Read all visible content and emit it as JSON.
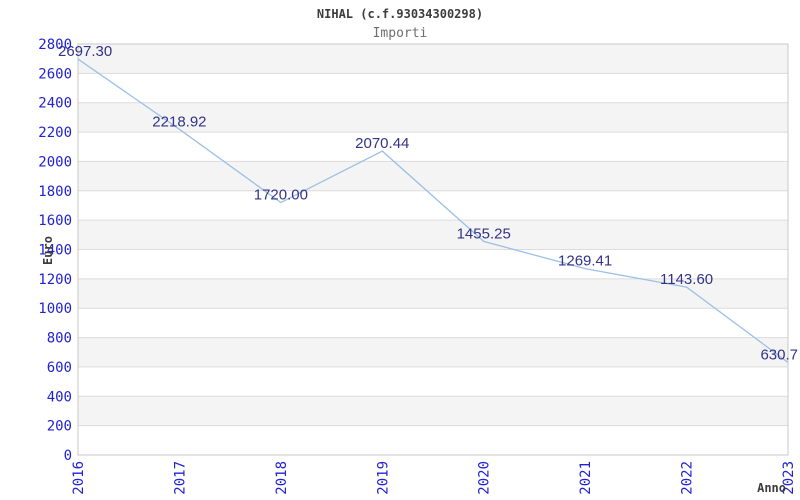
{
  "header": {
    "title": "NIHAL (c.f.93034300298)",
    "subtitle": "Importi"
  },
  "chart_data": {
    "type": "line",
    "title": "NIHAL (c.f.93034300298)",
    "subtitle": "Importi",
    "xlabel": "Anno",
    "ylabel": "Euro",
    "categories": [
      "2016",
      "2017",
      "2018",
      "2019",
      "2020",
      "2021",
      "2022",
      "2023"
    ],
    "values": [
      2697.3,
      2218.92,
      1720.0,
      2070.44,
      1455.25,
      1269.41,
      1143.6,
      630.7
    ],
    "point_labels": [
      "2697.30",
      "2218.92",
      "1720.00",
      "2070.44",
      "1455.25",
      "1269.41",
      "1143.60",
      "630.7"
    ],
    "ylim": [
      0,
      2800
    ],
    "ytick_step": 200,
    "grid": "horizontal gridlines with alternating shaded bands",
    "legend_position": "none",
    "markers": "none"
  },
  "colors": {
    "background": "#ffffff",
    "line": "#9cc0e6",
    "tick_label": "#2222d2",
    "point_label": "#333388",
    "band_fill": "#f4f4f4",
    "grid_line": "#dcdcdc",
    "plot_border": "#c8c8c8",
    "title": "#3c3c3c",
    "subtitle": "#6f6f6f",
    "axis_name": "#3c3c3c"
  }
}
